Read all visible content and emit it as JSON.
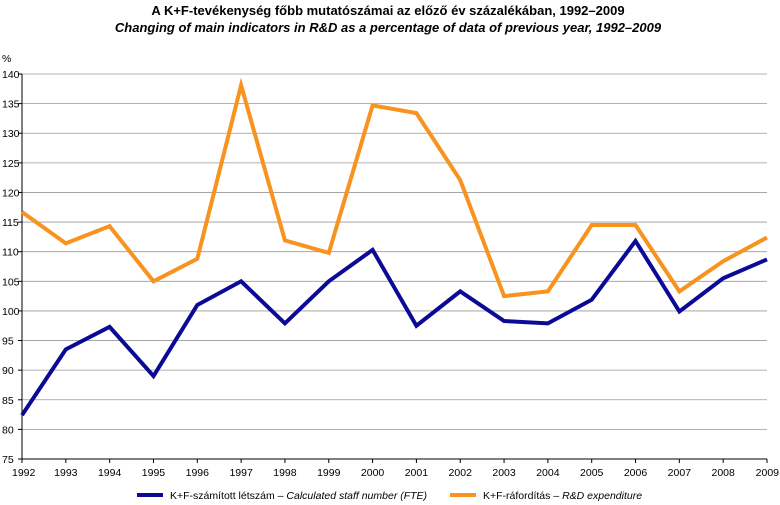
{
  "chart_data": {
    "type": "line",
    "title": "A K+F-tevékenység főbb mutatószámai az előző év százalékában, 1992–2009",
    "subtitle": "Changing of main indicators in R&D as a percentage of data of previous year, 1992–2009",
    "ylabel": "%",
    "xlabel": "",
    "ylim": [
      75,
      140
    ],
    "yticks": [
      75,
      80,
      85,
      90,
      95,
      100,
      105,
      110,
      115,
      120,
      125,
      130,
      135,
      140
    ],
    "grid": "horizontal",
    "legend_position": "bottom",
    "categories": [
      "1992",
      "1993",
      "1994",
      "1995",
      "1996",
      "1997",
      "1998",
      "1999",
      "2000",
      "2001",
      "2002",
      "2003",
      "2004",
      "2005",
      "2006",
      "2007",
      "2008",
      "2009"
    ],
    "series": [
      {
        "name": "K+F-számított létszám",
        "name_en": "Calculated staff number (FTE)",
        "color": "#0a0a96",
        "values": [
          82.4,
          93.5,
          97.3,
          89.0,
          101.0,
          105.0,
          97.9,
          105.0,
          110.3,
          97.5,
          103.3,
          98.3,
          97.9,
          101.9,
          111.8,
          99.9,
          105.5,
          108.7
        ]
      },
      {
        "name": "K+F-ráfordítás",
        "name_en": "R&D expenditure",
        "color": "#f7931e",
        "values": [
          116.7,
          111.4,
          114.3,
          105.0,
          108.8,
          138.1,
          111.9,
          109.8,
          134.7,
          133.4,
          122.1,
          102.5,
          103.3,
          114.5,
          114.5,
          103.3,
          108.4,
          112.4
        ]
      }
    ]
  }
}
